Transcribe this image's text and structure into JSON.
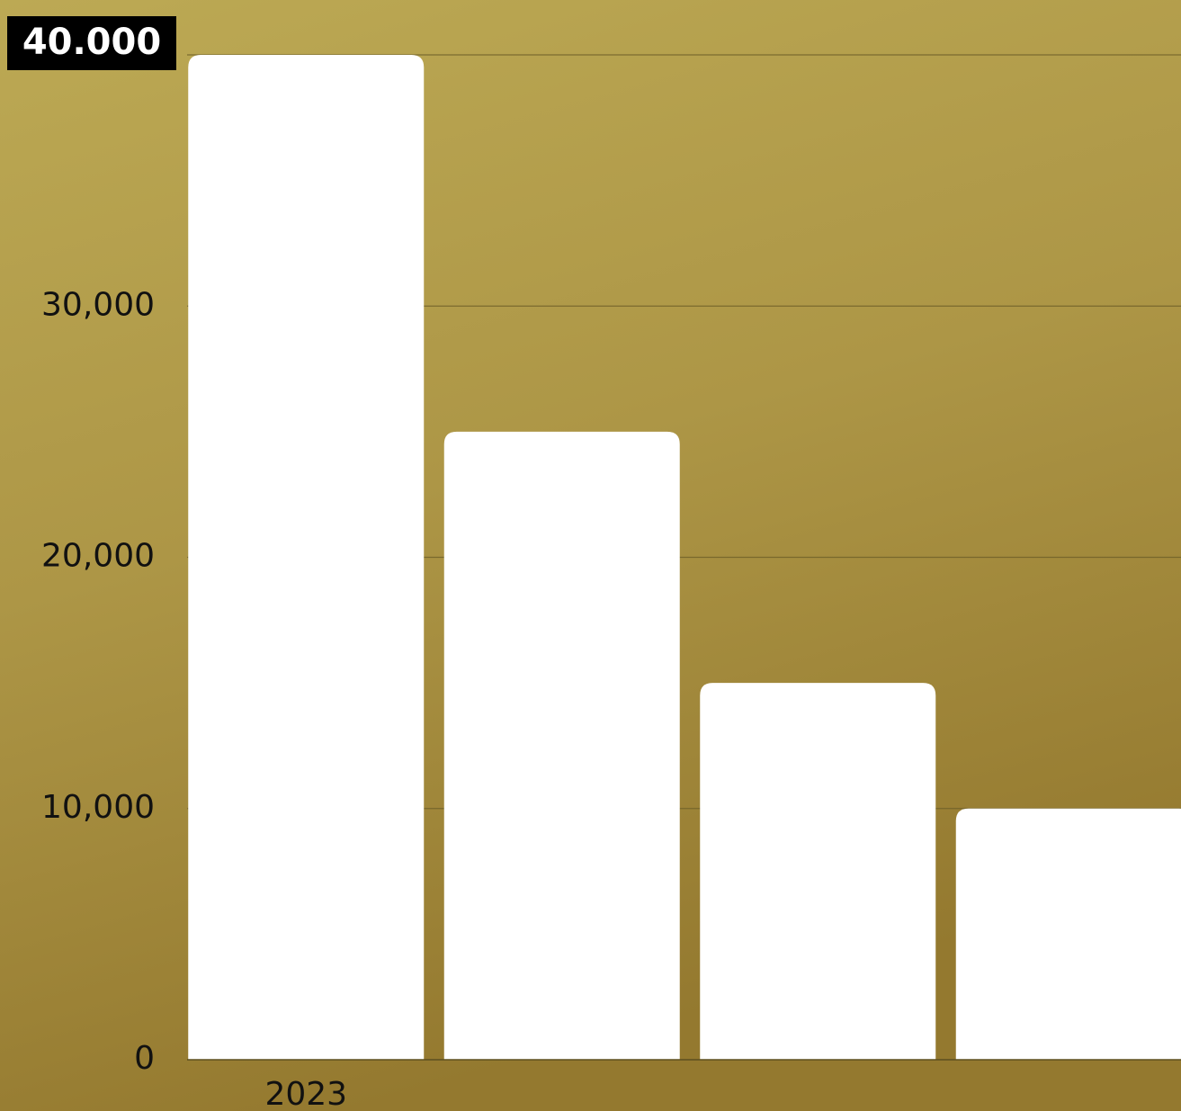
{
  "chart_data": {
    "type": "bar",
    "categories": [
      "2023",
      null,
      null,
      null
    ],
    "values": [
      40000,
      25000,
      15000,
      10000
    ],
    "color": "#ffffff",
    "ylim": [
      0,
      40000
    ],
    "yticks": [
      0,
      {
        "value": 10000,
        "label": "10,000"
      },
      {
        "value": 20000,
        "label": "20,000"
      },
      {
        "value": 30000,
        "label": "30,000"
      },
      {
        "value": 40000,
        "label": "40.000"
      }
    ],
    "grid": true
  }
}
